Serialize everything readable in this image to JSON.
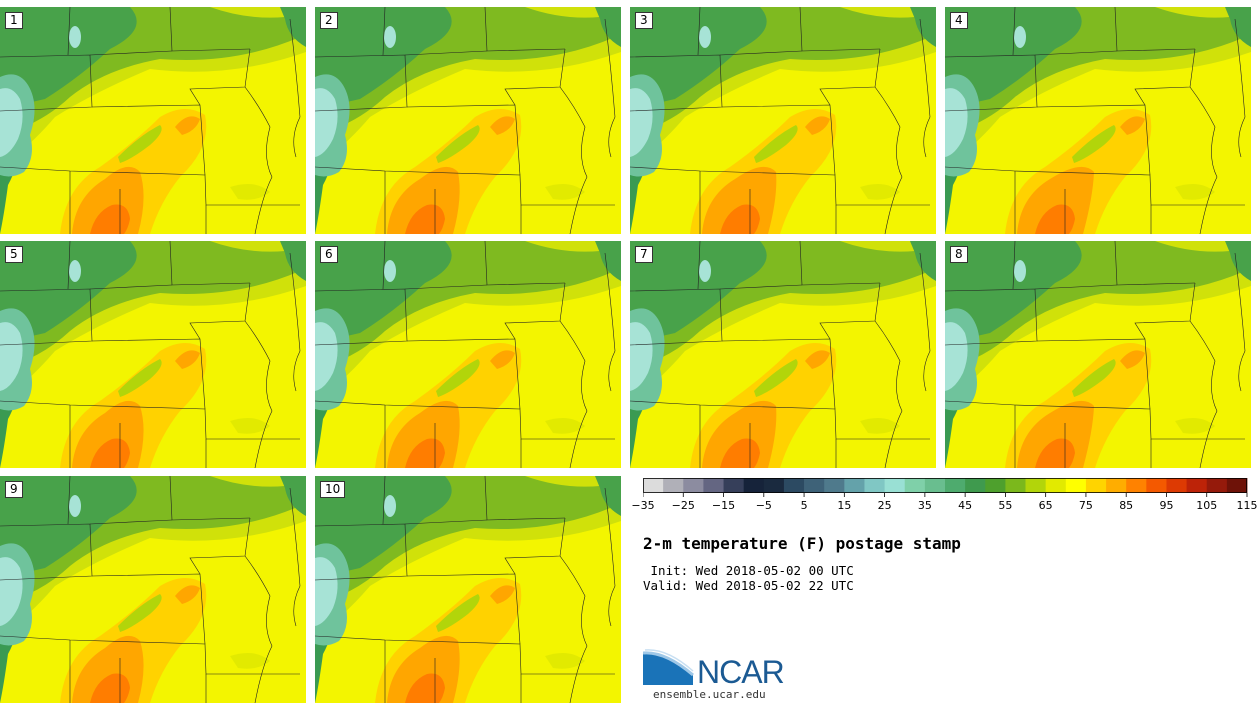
{
  "panels": [
    {
      "label": "1"
    },
    {
      "label": "2"
    },
    {
      "label": "3"
    },
    {
      "label": "4"
    },
    {
      "label": "5"
    },
    {
      "label": "6"
    },
    {
      "label": "7"
    },
    {
      "label": "8"
    },
    {
      "label": "9"
    },
    {
      "label": "10"
    }
  ],
  "colorbar": {
    "colors": [
      "#dcdcdc",
      "#b0b0b8",
      "#8c8ca0",
      "#646682",
      "#363f5a",
      "#16233a",
      "#1a2a3f",
      "#2c4a62",
      "#3e6278",
      "#4f7a8c",
      "#64a2aa",
      "#80c7c4",
      "#99e0d4",
      "#7fd0a9",
      "#69be8f",
      "#4eab6e",
      "#3f9a4e",
      "#4ea02d",
      "#7bb81c",
      "#b2d50a",
      "#e2ea00",
      "#ffff00",
      "#ffd400",
      "#ffad00",
      "#ff8200",
      "#f45900",
      "#dd3a03",
      "#bd2308",
      "#951a0b",
      "#6e1208"
    ],
    "tick_labels": [
      "−35",
      "−25",
      "−15",
      "−5",
      "5",
      "15",
      "25",
      "35",
      "45",
      "55",
      "65",
      "75",
      "85",
      "95",
      "105",
      "115"
    ]
  },
  "title": "2-m temperature (F) postage stamp",
  "init_text": " Init: Wed 2018-05-02 00 UTC",
  "valid_text": "Valid: Wed 2018-05-02 22 UTC",
  "logo_text": "NCAR",
  "site_text": "ensemble.ucar.edu"
}
